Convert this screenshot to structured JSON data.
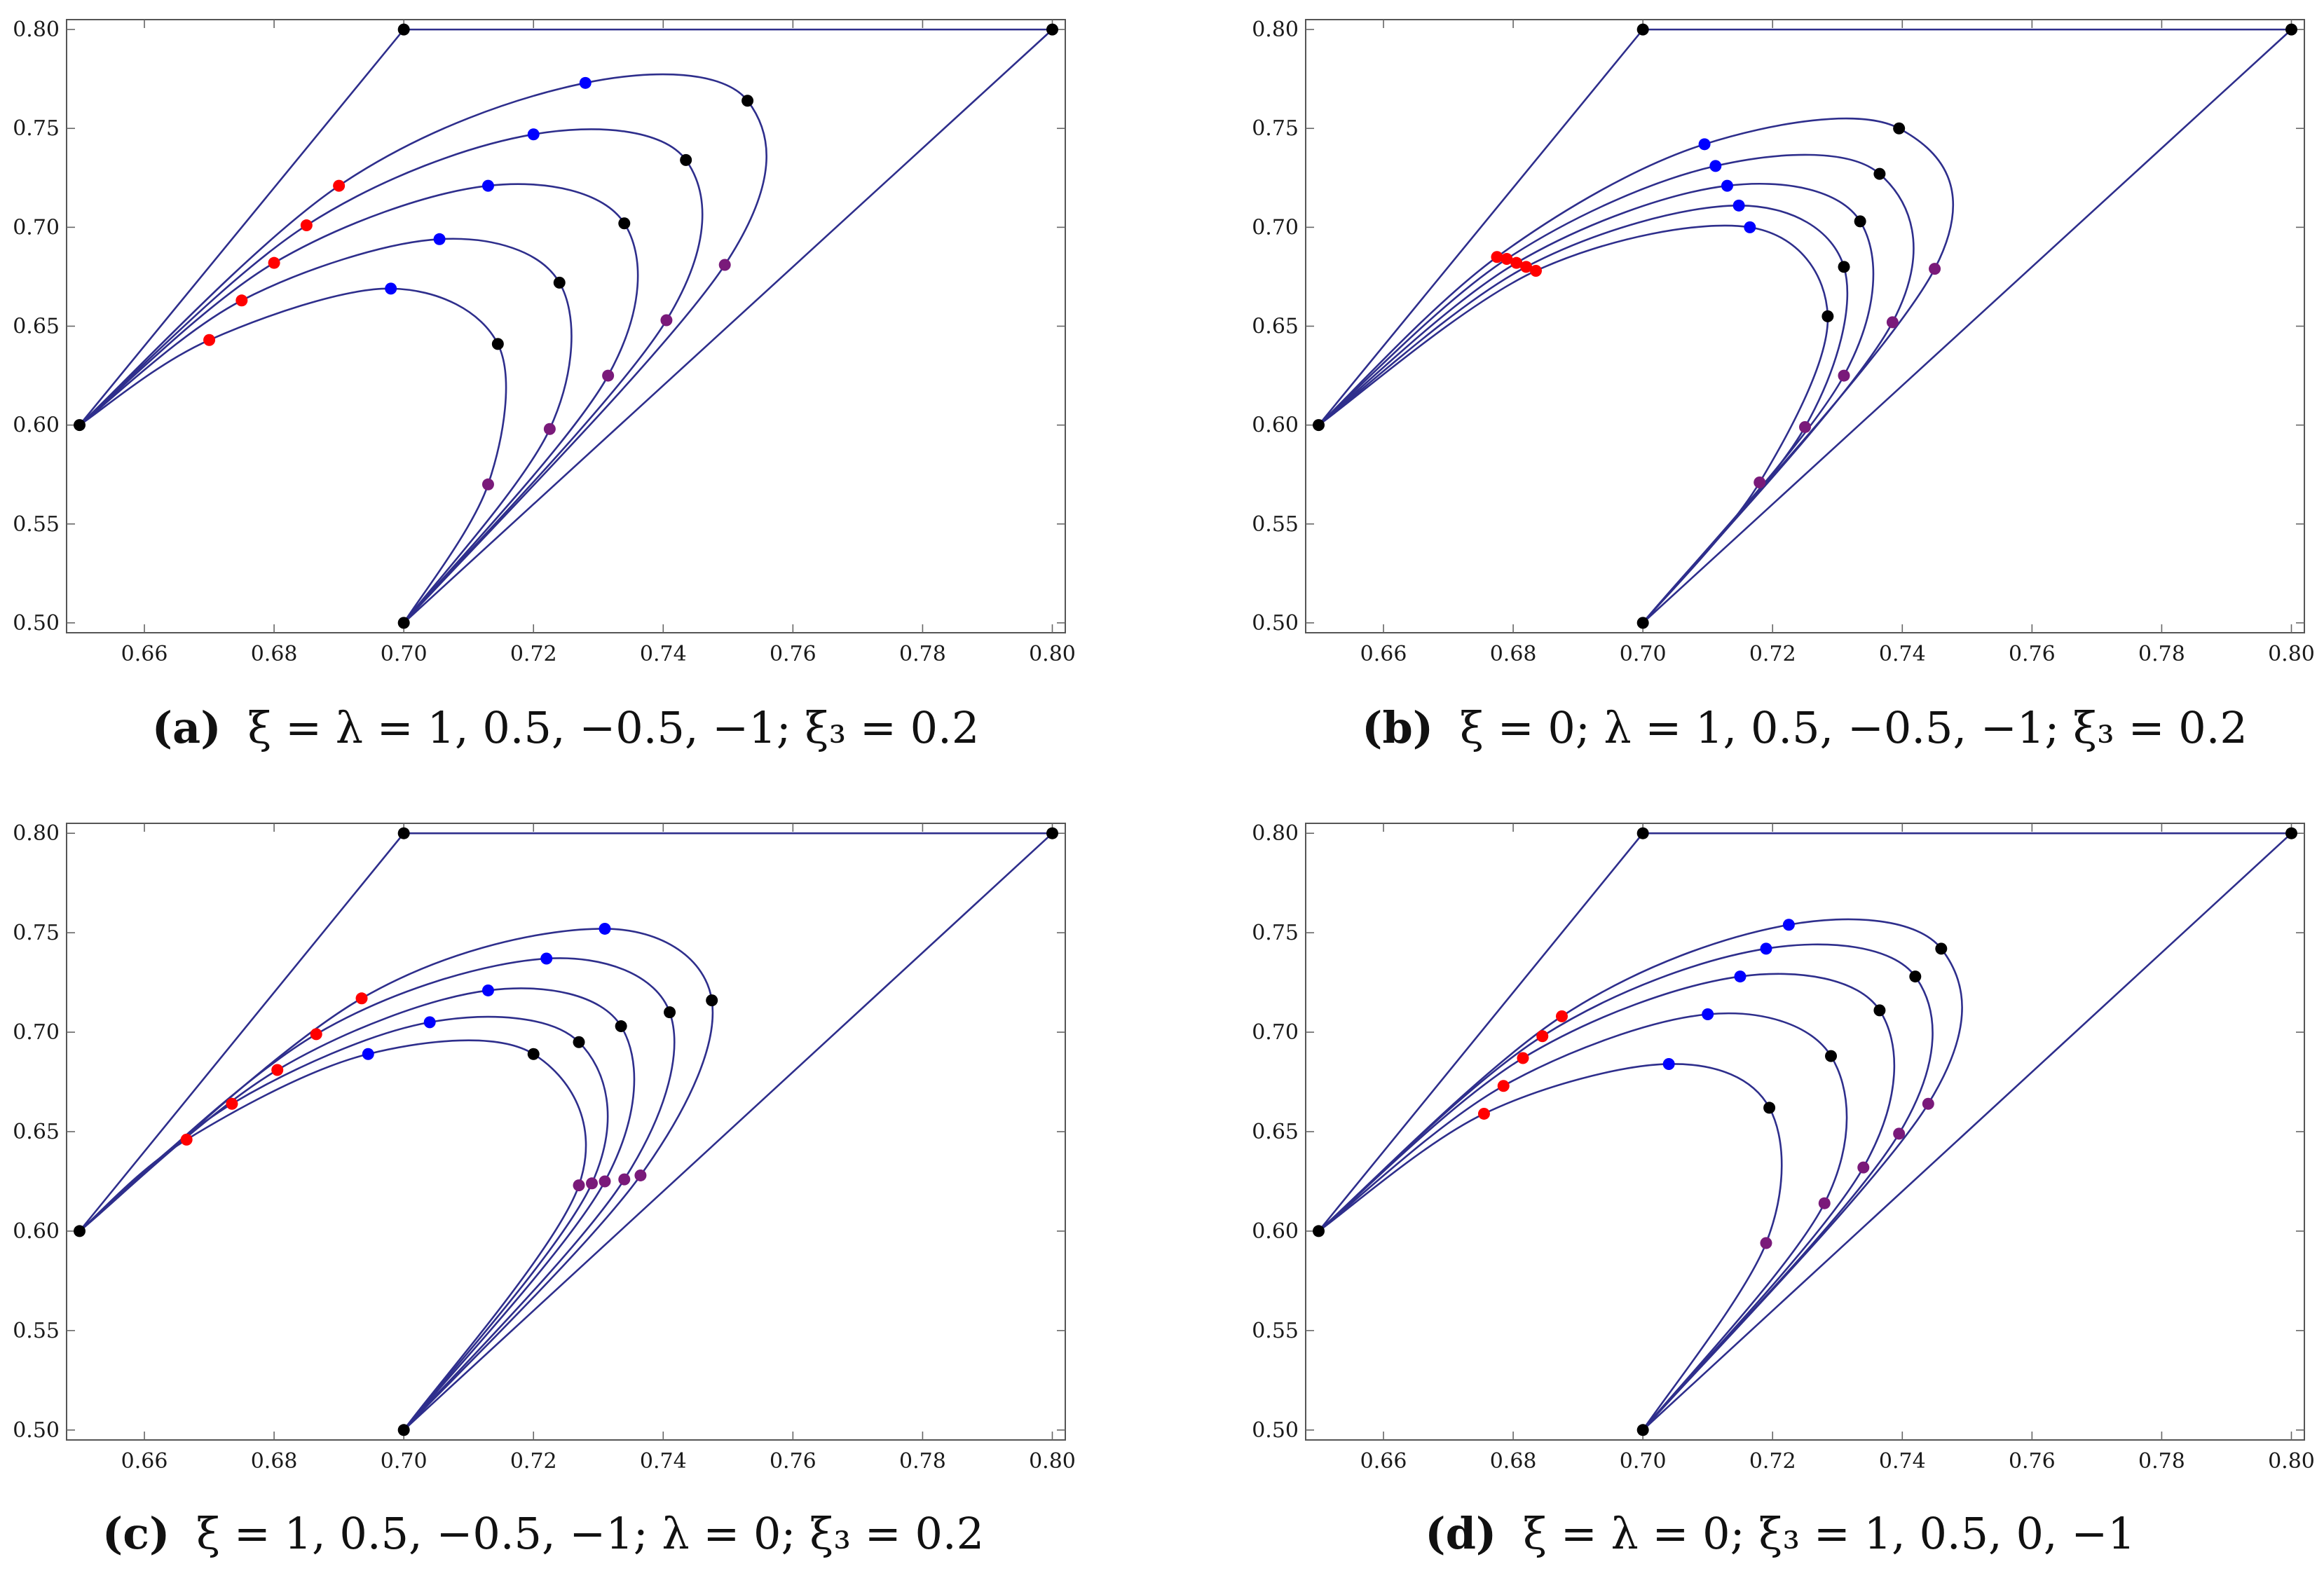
{
  "colors": {
    "curve": "#2e2e8c",
    "red": "#ff0000",
    "blue": "#0000ff",
    "black": "#000000",
    "purple": "#7a1a7a"
  },
  "chart_data": [
    {
      "id": "a",
      "type": "line",
      "caption_letter": "(a)",
      "caption_text": "ξ = λ = 1, 0.5, −0.5, −1; ξ₃ = 0.2",
      "xlim": [
        0.648,
        0.802
      ],
      "ylim": [
        0.495,
        0.805
      ],
      "xticks": [
        0.66,
        0.68,
        0.7,
        0.72,
        0.74,
        0.76,
        0.78,
        0.8
      ],
      "yticks": [
        0.5,
        0.55,
        0.6,
        0.65,
        0.7,
        0.75,
        0.8
      ],
      "xtick_labels": [
        "0.66",
        "0.68",
        "0.70",
        "0.72",
        "0.74",
        "0.76",
        "0.78",
        "0.80"
      ],
      "ytick_labels": [
        "0.50",
        "0.55",
        "0.60",
        "0.65",
        "0.70",
        "0.75",
        "0.80"
      ],
      "corners": [
        [
          0.65,
          0.6
        ],
        [
          0.7,
          0.8
        ],
        [
          0.8,
          0.8
        ],
        [
          0.7,
          0.5
        ]
      ],
      "curves": [
        {
          "red": [
            0.67,
            0.643
          ],
          "blue": [
            0.698,
            0.669
          ],
          "black": [
            0.7145,
            0.641
          ],
          "purple": [
            0.713,
            0.57
          ]
        },
        {
          "red": [
            0.675,
            0.663
          ],
          "blue": [
            0.7055,
            0.694
          ],
          "black": [
            0.724,
            0.672
          ],
          "purple": [
            0.7225,
            0.598
          ]
        },
        {
          "red": [
            0.68,
            0.682
          ],
          "blue": [
            0.713,
            0.721
          ],
          "black": [
            0.734,
            0.702
          ],
          "purple": [
            0.7315,
            0.625
          ]
        },
        {
          "red": [
            0.685,
            0.701
          ],
          "blue": [
            0.72,
            0.747
          ],
          "black": [
            0.7435,
            0.734
          ],
          "purple": [
            0.7405,
            0.653
          ]
        },
        {
          "red": [
            0.69,
            0.721
          ],
          "blue": [
            0.728,
            0.773
          ],
          "black": [
            0.753,
            0.764
          ],
          "purple": [
            0.7495,
            0.681
          ]
        }
      ]
    },
    {
      "id": "b",
      "type": "line",
      "caption_letter": "(b)",
      "caption_text": "ξ = 0; λ = 1, 0.5, −0.5, −1; ξ₃ = 0.2",
      "xlim": [
        0.648,
        0.802
      ],
      "ylim": [
        0.495,
        0.805
      ],
      "xticks": [
        0.66,
        0.68,
        0.7,
        0.72,
        0.74,
        0.76,
        0.78,
        0.8
      ],
      "yticks": [
        0.5,
        0.55,
        0.6,
        0.65,
        0.7,
        0.75,
        0.8
      ],
      "xtick_labels": [
        "0.66",
        "0.68",
        "0.70",
        "0.72",
        "0.74",
        "0.76",
        "0.78",
        "0.80"
      ],
      "ytick_labels": [
        "0.50",
        "0.55",
        "0.60",
        "0.65",
        "0.70",
        "0.75",
        "0.80"
      ],
      "corners": [
        [
          0.65,
          0.6
        ],
        [
          0.7,
          0.8
        ],
        [
          0.8,
          0.8
        ],
        [
          0.7,
          0.5
        ]
      ],
      "curves": [
        {
          "red": [
            0.6835,
            0.678
          ],
          "blue": [
            0.7165,
            0.7
          ],
          "black": [
            0.7285,
            0.655
          ],
          "purple": [
            0.718,
            0.571
          ]
        },
        {
          "red": [
            0.682,
            0.68
          ],
          "blue": [
            0.7148,
            0.711
          ],
          "black": [
            0.731,
            0.68
          ],
          "purple": [
            0.725,
            0.599
          ]
        },
        {
          "red": [
            0.6805,
            0.682
          ],
          "blue": [
            0.713,
            0.721
          ],
          "black": [
            0.7335,
            0.703
          ],
          "purple": [
            0.731,
            0.625
          ]
        },
        {
          "red": [
            0.679,
            0.684
          ],
          "blue": [
            0.7112,
            0.731
          ],
          "black": [
            0.7365,
            0.727
          ],
          "purple": [
            0.7385,
            0.652
          ]
        },
        {
          "red": [
            0.6775,
            0.685
          ],
          "blue": [
            0.7095,
            0.742
          ],
          "black": [
            0.7395,
            0.75
          ],
          "purple": [
            0.745,
            0.679
          ]
        }
      ]
    },
    {
      "id": "c",
      "type": "line",
      "caption_letter": "(c)",
      "caption_text": "ξ = 1, 0.5, −0.5, −1; λ = 0; ξ₃ = 0.2",
      "xlim": [
        0.648,
        0.802
      ],
      "ylim": [
        0.495,
        0.805
      ],
      "xticks": [
        0.66,
        0.68,
        0.7,
        0.72,
        0.74,
        0.76,
        0.78,
        0.8
      ],
      "yticks": [
        0.5,
        0.55,
        0.6,
        0.65,
        0.7,
        0.75,
        0.8
      ],
      "xtick_labels": [
        "0.66",
        "0.68",
        "0.70",
        "0.72",
        "0.74",
        "0.76",
        "0.78",
        "0.80"
      ],
      "ytick_labels": [
        "0.50",
        "0.55",
        "0.60",
        "0.65",
        "0.70",
        "0.75",
        "0.80"
      ],
      "corners": [
        [
          0.65,
          0.6
        ],
        [
          0.7,
          0.8
        ],
        [
          0.8,
          0.8
        ],
        [
          0.7,
          0.5
        ]
      ],
      "curves": [
        {
          "red": [
            0.6665,
            0.646
          ],
          "blue": [
            0.6945,
            0.689
          ],
          "black": [
            0.72,
            0.689
          ],
          "purple": [
            0.727,
            0.623
          ]
        },
        {
          "red": [
            0.6735,
            0.664
          ],
          "blue": [
            0.704,
            0.705
          ],
          "black": [
            0.727,
            0.695
          ],
          "purple": [
            0.729,
            0.624
          ]
        },
        {
          "red": [
            0.6805,
            0.681
          ],
          "blue": [
            0.713,
            0.721
          ],
          "black": [
            0.7335,
            0.703
          ],
          "purple": [
            0.731,
            0.625
          ]
        },
        {
          "red": [
            0.6865,
            0.699
          ],
          "blue": [
            0.722,
            0.737
          ],
          "black": [
            0.741,
            0.71
          ],
          "purple": [
            0.734,
            0.626
          ]
        },
        {
          "red": [
            0.6935,
            0.717
          ],
          "blue": [
            0.731,
            0.752
          ],
          "black": [
            0.7475,
            0.716
          ],
          "purple": [
            0.7365,
            0.628
          ]
        }
      ]
    },
    {
      "id": "d",
      "type": "line",
      "caption_letter": "(d)",
      "caption_text": "ξ = λ = 0; ξ₃ = 1, 0.5, 0, −1",
      "xlim": [
        0.648,
        0.802
      ],
      "ylim": [
        0.495,
        0.805
      ],
      "xticks": [
        0.66,
        0.68,
        0.7,
        0.72,
        0.74,
        0.76,
        0.78,
        0.8
      ],
      "yticks": [
        0.5,
        0.55,
        0.6,
        0.65,
        0.7,
        0.75,
        0.8
      ],
      "xtick_labels": [
        "0.66",
        "0.68",
        "0.70",
        "0.72",
        "0.74",
        "0.76",
        "0.78",
        "0.80"
      ],
      "ytick_labels": [
        "0.50",
        "0.55",
        "0.60",
        "0.65",
        "0.70",
        "0.75",
        "0.80"
      ],
      "corners": [
        [
          0.65,
          0.6
        ],
        [
          0.7,
          0.8
        ],
        [
          0.8,
          0.8
        ],
        [
          0.7,
          0.5
        ]
      ],
      "curves": [
        {
          "red": [
            0.6755,
            0.659
          ],
          "blue": [
            0.704,
            0.684
          ],
          "black": [
            0.7195,
            0.662
          ],
          "purple": [
            0.719,
            0.594
          ]
        },
        {
          "red": [
            0.6785,
            0.673
          ],
          "blue": [
            0.71,
            0.709
          ],
          "black": [
            0.729,
            0.688
          ],
          "purple": [
            0.728,
            0.614
          ]
        },
        {
          "red": [
            0.6815,
            0.687
          ],
          "blue": [
            0.715,
            0.728
          ],
          "black": [
            0.7365,
            0.711
          ],
          "purple": [
            0.734,
            0.632
          ]
        },
        {
          "red": [
            0.6845,
            0.698
          ],
          "blue": [
            0.719,
            0.742
          ],
          "black": [
            0.742,
            0.728
          ],
          "purple": [
            0.7395,
            0.649
          ]
        },
        {
          "red": [
            0.6875,
            0.708
          ],
          "blue": [
            0.7225,
            0.754
          ],
          "black": [
            0.746,
            0.742
          ],
          "purple": [
            0.744,
            0.664
          ]
        }
      ]
    }
  ]
}
